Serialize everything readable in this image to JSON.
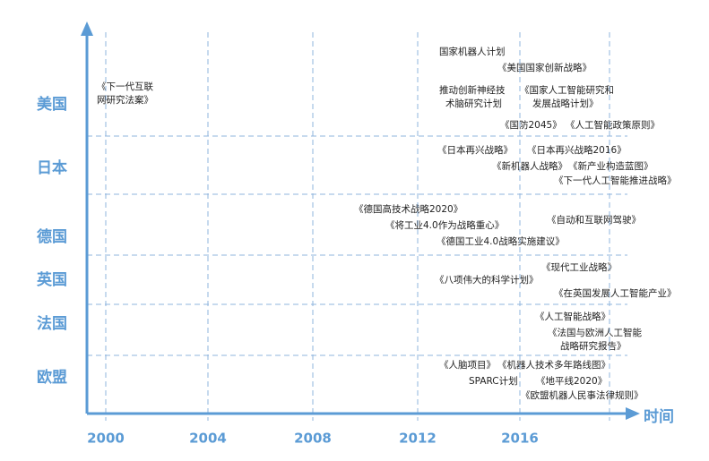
{
  "axis": {
    "label": "时间",
    "ticks": [
      "2000",
      "2004",
      "2008",
      "2012",
      "2016"
    ]
  },
  "rows": [
    {
      "label": "美国",
      "items": [
        {
          "lines": [
            "国家机器人计划"
          ]
        },
        {
          "lines": [
            "《美国国家创新战略》"
          ]
        },
        {
          "lines": [
            "《下一代互联",
            "网研究法案》"
          ]
        },
        {
          "lines": [
            "推动创新神经技",
            "术脑研究计划"
          ]
        },
        {
          "lines": [
            "《国家人工智能研究和",
            "发展战略计划》"
          ]
        },
        {
          "lines": [
            "《国防2045》"
          ]
        },
        {
          "lines": [
            "《人工智能政策原则》"
          ]
        }
      ]
    },
    {
      "label": "日本",
      "items": [
        {
          "lines": [
            "《日本再兴战略》"
          ]
        },
        {
          "lines": [
            "《日本再兴战略2016》"
          ]
        },
        {
          "lines": [
            "《新机器人战略》"
          ]
        },
        {
          "lines": [
            "《新产业构造蓝图》"
          ]
        },
        {
          "lines": [
            "《下一代人工智能推进战略》"
          ]
        }
      ]
    },
    {
      "label": "德国",
      "items": [
        {
          "lines": [
            "《德国高技术战略2020》"
          ]
        },
        {
          "lines": [
            "《将工业4.0作为战略重心》"
          ]
        },
        {
          "lines": [
            "《自动和互联网驾驶》"
          ]
        },
        {
          "lines": [
            "《德国工业4.0战略实施建议》"
          ]
        }
      ]
    },
    {
      "label": "英国",
      "items": [
        {
          "lines": [
            "《现代工业战略》"
          ]
        },
        {
          "lines": [
            "《八项伟大的科学计划》"
          ]
        },
        {
          "lines": [
            "《在英国发展人工智能产业》"
          ]
        }
      ]
    },
    {
      "label": "法国",
      "items": [
        {
          "lines": [
            "《人工智能战略》"
          ]
        },
        {
          "lines": [
            "《法国与欧洲人工智能",
            "战略研究报告》"
          ]
        }
      ]
    },
    {
      "label": "欧盟",
      "items": [
        {
          "lines": [
            "《人脑项目》"
          ]
        },
        {
          "lines": [
            "《机器人技术多年路线图》"
          ]
        },
        {
          "lines": [
            "SPARC计划"
          ]
        },
        {
          "lines": [
            "《地平线2020》"
          ]
        },
        {
          "lines": [
            "《欧盟机器人民事法律规则》"
          ]
        }
      ]
    }
  ]
}
